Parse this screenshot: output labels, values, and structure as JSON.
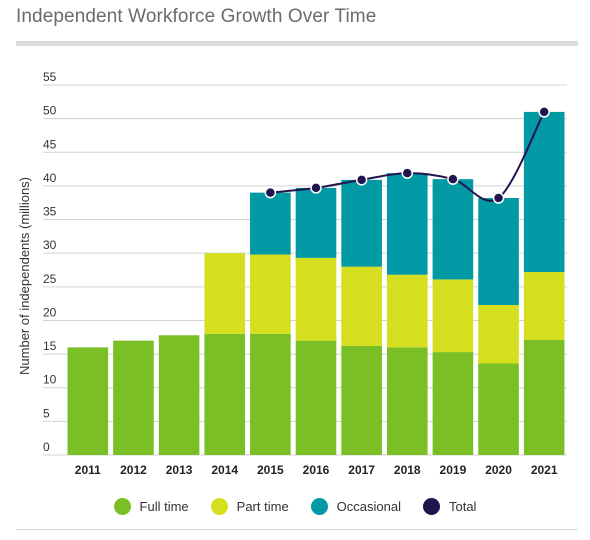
{
  "title": "Independent Workforce Growth Over Time",
  "chart_data": {
    "type": "bar",
    "stacked": true,
    "title": "Independent Workforce Growth Over Time",
    "xlabel": "",
    "ylabel": "Number of independents (millions)",
    "ylim": [
      0,
      55
    ],
    "yticks": [
      0,
      5,
      10,
      15,
      20,
      25,
      30,
      35,
      40,
      45,
      50,
      55
    ],
    "grid": "horizontal",
    "legend_position": "bottom",
    "categories": [
      "2011",
      "2012",
      "2013",
      "2014",
      "2015",
      "2016",
      "2017",
      "2018",
      "2019",
      "2020",
      "2021"
    ],
    "series": [
      {
        "name": "Full time",
        "color": "#7bbf27",
        "values": [
          16.0,
          17.0,
          17.8,
          18.0,
          18.0,
          17.0,
          16.2,
          16.0,
          15.3,
          13.6,
          17.1
        ]
      },
      {
        "name": "Part time",
        "color": "#d5df1f",
        "values": [
          0,
          0,
          0,
          12.0,
          11.8,
          12.3,
          11.8,
          10.8,
          10.8,
          8.7,
          10.1
        ]
      },
      {
        "name": "Occasional",
        "color": "#0099a4",
        "values": [
          0,
          0,
          0,
          0,
          9.2,
          10.4,
          12.9,
          15.1,
          14.9,
          15.9,
          23.8
        ]
      }
    ],
    "total_line": {
      "name": "Total",
      "color": "#22144f",
      "values": [
        null,
        null,
        null,
        null,
        39.0,
        39.7,
        40.9,
        41.9,
        41.0,
        38.2,
        51.0
      ]
    }
  }
}
